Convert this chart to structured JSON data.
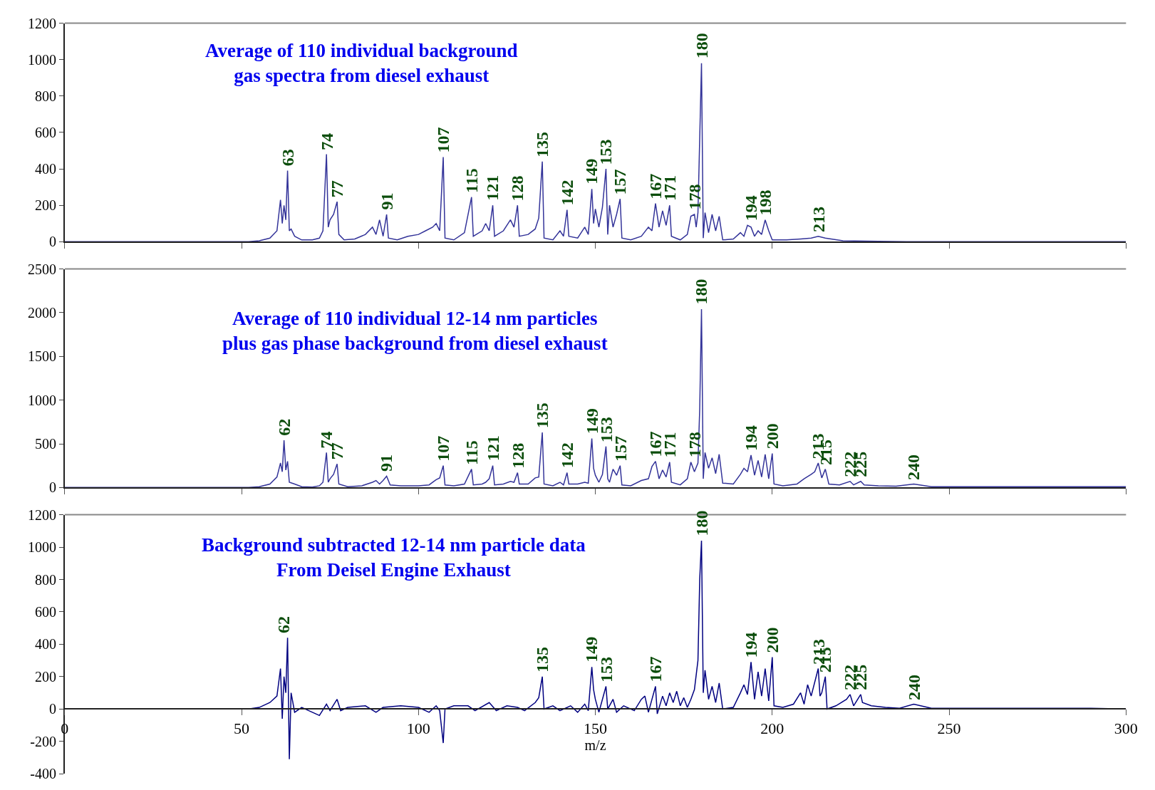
{
  "chart_data": [
    {
      "type": "line",
      "title": "Average of 110 individual background\ngas spectra from diesel exhaust",
      "xlim": [
        0,
        300
      ],
      "xticks": [
        0,
        50,
        100,
        150,
        200,
        250,
        300
      ],
      "ylim": [
        0,
        1200
      ],
      "yticks": [
        0,
        200,
        400,
        600,
        800,
        1000,
        1200
      ],
      "tick_labels": "y",
      "series": [
        {
          "color": "#333399",
          "x": [
            0,
            52,
            55,
            58,
            60,
            61,
            61.5,
            62,
            62.5,
            63,
            63.5,
            64,
            65,
            67,
            70,
            72,
            73,
            74,
            74.5,
            75,
            76,
            77,
            77.5,
            79,
            82,
            85,
            87,
            88,
            89,
            90,
            91,
            91.5,
            94,
            97,
            100,
            102,
            104,
            105,
            106,
            107,
            107.5,
            110,
            113,
            115,
            115.5,
            118,
            119,
            120,
            121,
            121.5,
            124,
            126,
            127,
            128,
            128.5,
            131,
            133,
            134,
            135,
            135.5,
            138,
            140,
            141,
            142,
            142.5,
            145,
            147,
            148,
            149,
            149.5,
            150,
            151,
            152,
            153,
            153.5,
            154,
            155,
            156,
            157,
            157.5,
            160,
            163,
            165,
            166,
            167,
            168,
            169,
            170,
            171,
            171.5,
            174,
            176,
            177,
            178,
            178.5,
            179,
            180,
            180.5,
            181,
            182,
            183,
            184,
            185,
            186,
            189,
            191,
            192,
            193,
            194,
            195,
            196,
            197,
            198,
            199,
            200,
            204,
            208,
            211,
            213,
            215,
            220,
            230,
            240,
            300
          ],
          "values": [
            0,
            0,
            5,
            20,
            60,
            230,
            100,
            200,
            120,
            390,
            60,
            70,
            30,
            10,
            10,
            20,
            60,
            480,
            80,
            120,
            150,
            220,
            40,
            10,
            15,
            40,
            80,
            40,
            120,
            30,
            150,
            20,
            10,
            30,
            40,
            60,
            80,
            100,
            60,
            465,
            20,
            10,
            50,
            245,
            30,
            60,
            100,
            60,
            200,
            30,
            60,
            120,
            80,
            200,
            30,
            40,
            70,
            130,
            440,
            20,
            10,
            60,
            30,
            175,
            30,
            20,
            80,
            40,
            290,
            100,
            180,
            80,
            190,
            400,
            40,
            200,
            80,
            150,
            235,
            20,
            10,
            30,
            80,
            60,
            210,
            80,
            170,
            90,
            200,
            30,
            10,
            40,
            140,
            150,
            80,
            160,
            980,
            20,
            160,
            50,
            150,
            60,
            140,
            10,
            15,
            50,
            30,
            90,
            80,
            30,
            60,
            40,
            120,
            60,
            10,
            10,
            15,
            20,
            30,
            20,
            5,
            2,
            0,
            0
          ]
        }
      ],
      "annotations": [
        {
          "text": "63",
          "x": 63,
          "y": 390
        },
        {
          "text": "74",
          "x": 74,
          "y": 480
        },
        {
          "text": "77",
          "x": 77,
          "y": 220
        },
        {
          "text": "91",
          "x": 91,
          "y": 150
        },
        {
          "text": "107",
          "x": 107,
          "y": 465
        },
        {
          "text": "115",
          "x": 115,
          "y": 245
        },
        {
          "text": "121",
          "x": 121,
          "y": 200
        },
        {
          "text": "128",
          "x": 128,
          "y": 200
        },
        {
          "text": "135",
          "x": 135,
          "y": 440
        },
        {
          "text": "142",
          "x": 142,
          "y": 175
        },
        {
          "text": "149",
          "x": 149,
          "y": 290
        },
        {
          "text": "153",
          "x": 153,
          "y": 400
        },
        {
          "text": "157",
          "x": 157,
          "y": 235
        },
        {
          "text": "167",
          "x": 167,
          "y": 210
        },
        {
          "text": "171",
          "x": 171,
          "y": 200
        },
        {
          "text": "178",
          "x": 178,
          "y": 150
        },
        {
          "text": "180",
          "x": 180,
          "y": 980
        },
        {
          "text": "194",
          "x": 194,
          "y": 90
        },
        {
          "text": "198",
          "x": 198,
          "y": 120
        },
        {
          "text": "213",
          "x": 213,
          "y": 30
        }
      ]
    },
    {
      "type": "line",
      "title": "Average of 110 individual 12-14 nm particles\nplus gas phase background from diesel exhaust",
      "xlim": [
        0,
        300
      ],
      "xticks": [
        0,
        50,
        100,
        150,
        200,
        250,
        300
      ],
      "ylim": [
        0,
        2500
      ],
      "yticks": [
        0,
        500,
        1000,
        1500,
        2000,
        2500
      ],
      "tick_labels": "y",
      "series": [
        {
          "color": "#333399",
          "x": [
            0,
            52,
            55,
            58,
            60,
            61,
            61.5,
            62,
            62.5,
            63,
            63.5,
            65,
            67,
            70,
            72,
            73,
            74,
            74.5,
            75,
            76,
            77,
            77.5,
            80,
            84,
            87,
            88,
            89,
            90,
            91,
            92,
            95,
            100,
            103,
            105,
            106,
            107,
            107.5,
            110,
            113,
            115,
            115.5,
            118,
            119,
            120,
            121,
            121.5,
            124,
            126,
            127,
            128,
            128.5,
            131,
            133,
            134,
            135,
            135.5,
            138,
            140,
            141,
            142,
            142.5,
            145,
            147,
            148,
            149,
            149.5,
            150,
            151,
            152,
            153,
            153.5,
            154,
            155,
            156,
            157,
            157.5,
            160,
            163,
            165,
            166,
            167,
            168,
            169,
            170,
            171,
            171.5,
            174,
            176,
            177,
            178,
            179,
            179.5,
            180,
            180.5,
            181,
            182,
            183,
            184,
            185,
            186,
            189,
            191,
            192,
            193,
            194,
            195,
            196,
            197,
            198,
            199,
            200,
            200.5,
            203,
            207,
            209,
            211,
            212,
            213,
            214,
            215,
            216,
            219,
            222,
            223,
            225,
            226,
            230,
            235,
            240,
            245,
            250,
            260,
            270,
            280,
            290,
            300
          ],
          "values": [
            0,
            0,
            10,
            40,
            120,
            280,
            180,
            540,
            200,
            300,
            60,
            40,
            10,
            5,
            20,
            60,
            400,
            60,
            100,
            150,
            270,
            40,
            10,
            20,
            60,
            80,
            40,
            80,
            130,
            30,
            20,
            20,
            30,
            90,
            110,
            250,
            30,
            20,
            40,
            210,
            30,
            40,
            60,
            100,
            250,
            30,
            40,
            70,
            60,
            170,
            40,
            40,
            110,
            120,
            630,
            40,
            20,
            60,
            30,
            170,
            40,
            40,
            60,
            50,
            560,
            220,
            140,
            60,
            150,
            470,
            100,
            60,
            210,
            140,
            250,
            30,
            20,
            80,
            100,
            240,
            300,
            100,
            200,
            120,
            290,
            60,
            30,
            100,
            290,
            180,
            280,
            900,
            2040,
            100,
            400,
            220,
            340,
            160,
            380,
            50,
            40,
            150,
            220,
            180,
            370,
            140,
            310,
            120,
            380,
            100,
            390,
            40,
            20,
            40,
            100,
            150,
            180,
            280,
            110,
            210,
            40,
            30,
            70,
            30,
            70,
            30,
            20,
            15,
            40,
            10,
            10,
            10,
            10,
            10,
            10,
            10
          ]
        }
      ],
      "annotations": [
        {
          "text": "62",
          "x": 62,
          "y": 540
        },
        {
          "text": "74",
          "x": 74,
          "y": 400
        },
        {
          "text": "77",
          "x": 77,
          "y": 270
        },
        {
          "text": "91",
          "x": 91,
          "y": 130
        },
        {
          "text": "107",
          "x": 107,
          "y": 250
        },
        {
          "text": "115",
          "x": 115,
          "y": 210
        },
        {
          "text": "121",
          "x": 121,
          "y": 250
        },
        {
          "text": "128",
          "x": 128,
          "y": 170
        },
        {
          "text": "135",
          "x": 135,
          "y": 630
        },
        {
          "text": "142",
          "x": 142,
          "y": 170
        },
        {
          "text": "149",
          "x": 149,
          "y": 560
        },
        {
          "text": "153",
          "x": 153,
          "y": 470
        },
        {
          "text": "157",
          "x": 157,
          "y": 250
        },
        {
          "text": "167",
          "x": 167,
          "y": 300
        },
        {
          "text": "171",
          "x": 171,
          "y": 290
        },
        {
          "text": "178",
          "x": 178,
          "y": 290
        },
        {
          "text": "180",
          "x": 180,
          "y": 2040
        },
        {
          "text": "194",
          "x": 194,
          "y": 370
        },
        {
          "text": "200",
          "x": 200,
          "y": 390
        },
        {
          "text": "213",
          "x": 213,
          "y": 280
        },
        {
          "text": "215",
          "x": 215,
          "y": 210
        },
        {
          "text": "222",
          "x": 222,
          "y": 70
        },
        {
          "text": "225",
          "x": 225,
          "y": 70
        },
        {
          "text": "240",
          "x": 240,
          "y": 40
        }
      ]
    },
    {
      "type": "line",
      "title": "Background subtracted 12-14 nm particle data\nFrom Deisel Engine Exhaust",
      "xlabel": "m/z",
      "xlim": [
        0,
        300
      ],
      "xticks": [
        0,
        50,
        100,
        150,
        200,
        250,
        300
      ],
      "ylim": [
        -400,
        1200
      ],
      "yticks": [
        -400,
        -200,
        0,
        200,
        400,
        600,
        800,
        1000,
        1200
      ],
      "series": [
        {
          "color": "#000080",
          "x": [
            0,
            52,
            55,
            58,
            60,
            61,
            61.5,
            62,
            62.5,
            63,
            63.5,
            64,
            65,
            67,
            70,
            72,
            74,
            75,
            77,
            78,
            80,
            85,
            88,
            90,
            95,
            100,
            103,
            105,
            106,
            107,
            107.5,
            110,
            114,
            116,
            120,
            122,
            125,
            128,
            130,
            133,
            134,
            135,
            135.5,
            138,
            140,
            143,
            145,
            147,
            148,
            149,
            149.5,
            150,
            151,
            152,
            153,
            153.5,
            155,
            156,
            158,
            161,
            163,
            164,
            165,
            167,
            167.5,
            169,
            170,
            171,
            172,
            173,
            174,
            175,
            176,
            177,
            178,
            179,
            179.5,
            180,
            180.5,
            181,
            182,
            183,
            184,
            185,
            186,
            189,
            191,
            192,
            193,
            194,
            195,
            196,
            197,
            198,
            199,
            200,
            200.5,
            203,
            206,
            208,
            209,
            210,
            211,
            213,
            213.5,
            214,
            215,
            215.5,
            218,
            221,
            222,
            223,
            225,
            225.5,
            228,
            232,
            236,
            240,
            245,
            250,
            260,
            270,
            280,
            290,
            300
          ],
          "values": [
            0,
            0,
            10,
            40,
            80,
            250,
            -60,
            200,
            100,
            440,
            -310,
            100,
            -20,
            10,
            -20,
            -40,
            30,
            -10,
            60,
            -10,
            10,
            20,
            -20,
            10,
            20,
            10,
            -20,
            20,
            -10,
            -210,
            0,
            20,
            20,
            -10,
            40,
            -10,
            20,
            10,
            -10,
            40,
            70,
            200,
            0,
            20,
            -10,
            20,
            -20,
            30,
            -10,
            260,
            120,
            60,
            -20,
            60,
            140,
            0,
            60,
            -20,
            20,
            -10,
            60,
            80,
            -20,
            140,
            -30,
            80,
            20,
            100,
            40,
            110,
            20,
            70,
            10,
            60,
            120,
            300,
            800,
            1040,
            100,
            240,
            60,
            140,
            40,
            160,
            0,
            10,
            100,
            150,
            90,
            290,
            60,
            230,
            80,
            250,
            50,
            320,
            20,
            10,
            30,
            100,
            30,
            150,
            80,
            250,
            80,
            100,
            200,
            0,
            20,
            60,
            90,
            20,
            90,
            40,
            20,
            10,
            5,
            30,
            5,
            5,
            5,
            5,
            5,
            5,
            0
          ]
        }
      ],
      "annotations": [
        {
          "text": "62",
          "x": 62,
          "y": 440
        },
        {
          "text": "135",
          "x": 135,
          "y": 200
        },
        {
          "text": "149",
          "x": 149,
          "y": 260
        },
        {
          "text": "153",
          "x": 153,
          "y": 140
        },
        {
          "text": "167",
          "x": 167,
          "y": 140
        },
        {
          "text": "180",
          "x": 180,
          "y": 1040
        },
        {
          "text": "194",
          "x": 194,
          "y": 290
        },
        {
          "text": "200",
          "x": 200,
          "y": 320
        },
        {
          "text": "213",
          "x": 213,
          "y": 250
        },
        {
          "text": "215",
          "x": 215,
          "y": 200
        },
        {
          "text": "222",
          "x": 222,
          "y": 90
        },
        {
          "text": "225",
          "x": 225,
          "y": 90
        },
        {
          "text": "240",
          "x": 240,
          "y": 30
        }
      ]
    }
  ]
}
